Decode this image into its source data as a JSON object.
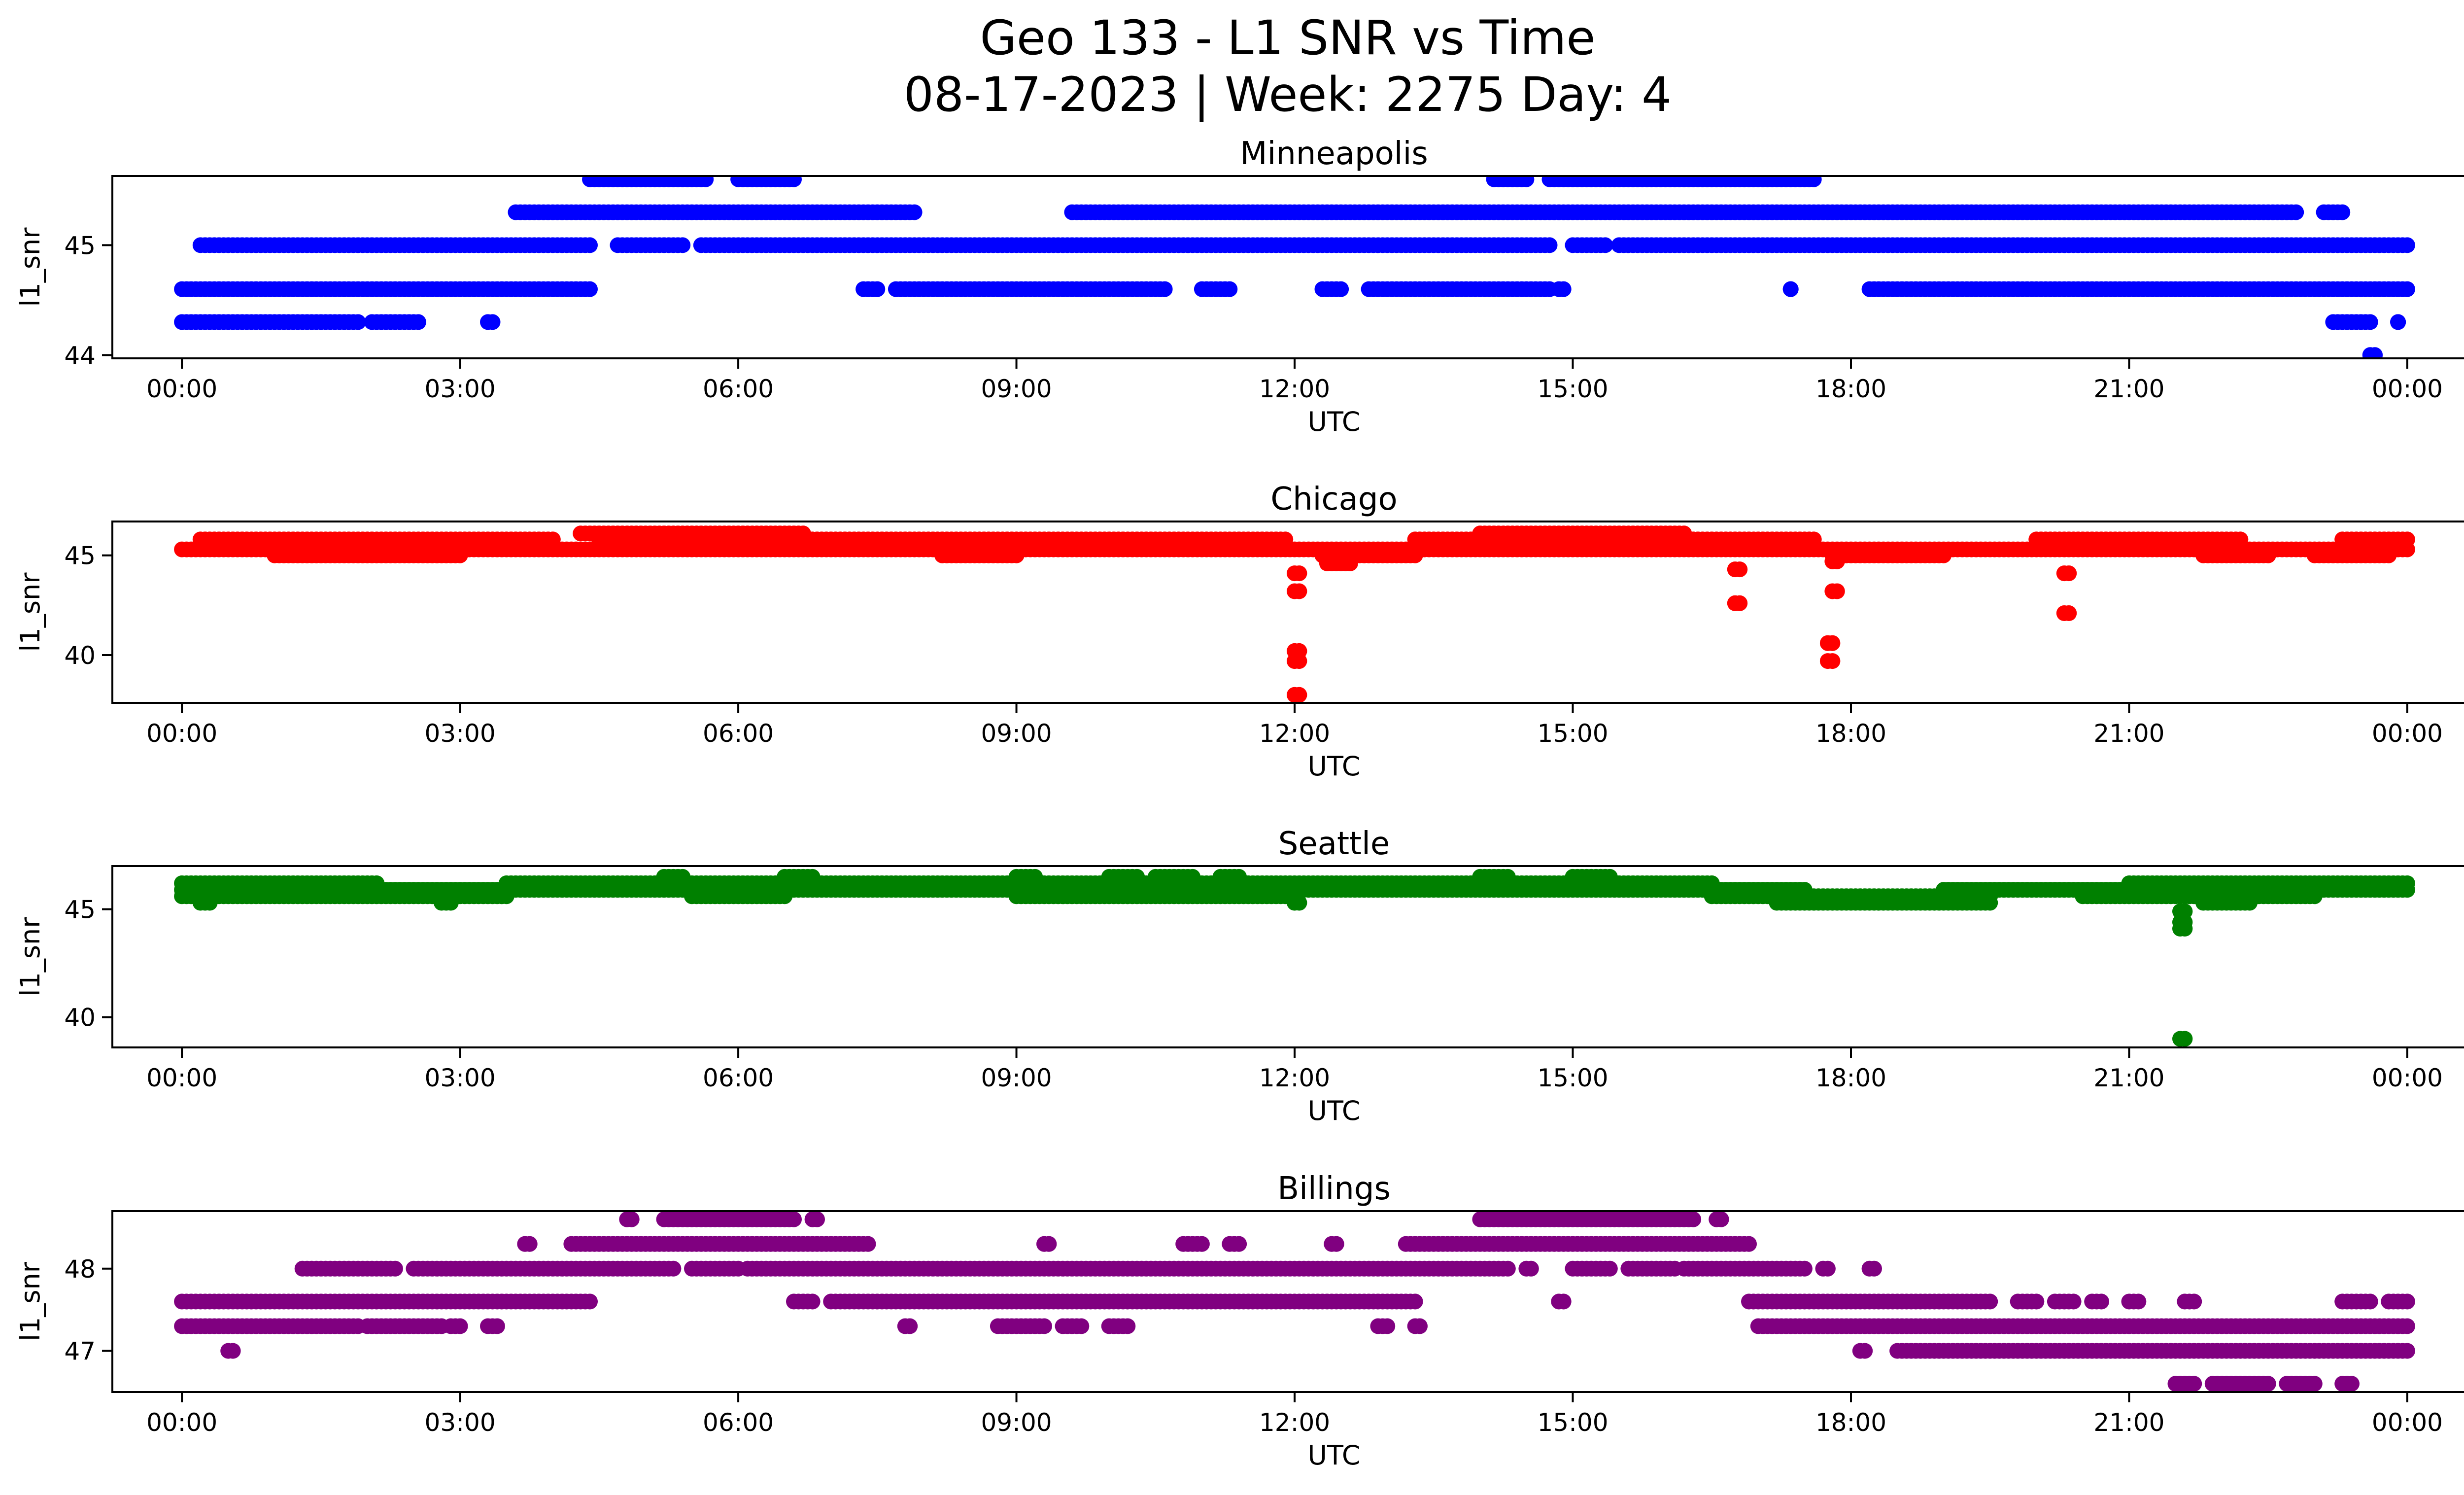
{
  "figure": {
    "title_line1": "Geo 133 - L1 SNR vs Time",
    "title_line2": "08-17-2023 | Week: 2275 Day: 4"
  },
  "chart_data": [
    {
      "type": "scatter",
      "title": "Minneapolis",
      "xlabel": "UTC",
      "ylabel": "l1_snr",
      "color": "#0000ff",
      "xlim_hours": [
        -0.75,
        25.6
      ],
      "ylim": [
        43.97,
        45.63
      ],
      "xticks": [
        "00:00",
        "03:00",
        "06:00",
        "09:00",
        "12:00",
        "15:00",
        "18:00",
        "21:00",
        "00:00"
      ],
      "yticks": [
        44,
        45
      ],
      "grid": false,
      "segments": [
        {
          "y": 45.6,
          "ranges": [
            [
              4.4,
              5.65
            ],
            [
              6.0,
              6.6
            ],
            [
              14.15,
              14.5
            ],
            [
              14.75,
              17.6
            ]
          ]
        },
        {
          "y": 45.3,
          "ranges": [
            [
              3.6,
              7.9
            ],
            [
              9.6,
              22.8
            ],
            [
              23.1,
              23.3
            ]
          ]
        },
        {
          "y": 45.0,
          "ranges": [
            [
              0.2,
              4.4
            ],
            [
              4.7,
              5.4
            ],
            [
              5.6,
              14.75
            ],
            [
              15.0,
              15.35
            ],
            [
              15.5,
              24.0
            ]
          ]
        },
        {
          "y": 44.6,
          "ranges": [
            [
              0.0,
              4.4
            ],
            [
              7.35,
              7.5
            ],
            [
              7.7,
              10.6
            ],
            [
              11.0,
              11.3
            ],
            [
              12.3,
              12.5
            ],
            [
              12.8,
              14.75
            ],
            [
              14.85,
              14.9
            ],
            [
              17.35,
              17.35
            ],
            [
              18.2,
              24.0
            ]
          ]
        },
        {
          "y": 44.3,
          "ranges": [
            [
              0.0,
              1.9
            ],
            [
              2.05,
              2.55
            ],
            [
              3.3,
              3.35
            ],
            [
              23.2,
              23.6
            ],
            [
              23.9,
              23.9
            ]
          ]
        },
        {
          "y": 44.0,
          "ranges": [
            [
              23.6,
              23.65
            ]
          ]
        }
      ]
    },
    {
      "type": "scatter",
      "title": "Chicago",
      "xlabel": "UTC",
      "ylabel": "l1_snr",
      "color": "#ff0000",
      "xlim_hours": [
        -0.75,
        25.6
      ],
      "ylim": [
        37.6,
        46.7
      ],
      "xticks": [
        "00:00",
        "03:00",
        "06:00",
        "09:00",
        "12:00",
        "15:00",
        "18:00",
        "21:00",
        "00:00"
      ],
      "yticks": [
        40,
        45
      ],
      "grid": false,
      "segments": [
        {
          "y": 45.3,
          "ranges": [
            [
              0.0,
              24.0
            ]
          ]
        },
        {
          "y": 45.8,
          "ranges": [
            [
              0.2,
              4.0
            ],
            [
              4.5,
              11.9
            ],
            [
              13.3,
              17.6
            ],
            [
              20.0,
              22.2
            ],
            [
              23.3,
              24.0
            ]
          ]
        },
        {
          "y": 46.1,
          "ranges": [
            [
              4.3,
              6.7
            ],
            [
              14.0,
              16.2
            ]
          ]
        },
        {
          "y": 45.0,
          "ranges": [
            [
              1.0,
              3.0
            ],
            [
              8.2,
              9.0
            ],
            [
              12.3,
              13.3
            ],
            [
              17.8,
              19.0
            ],
            [
              21.8,
              22.5
            ],
            [
              23.0,
              23.8
            ]
          ]
        },
        {
          "y": 44.6,
          "ranges": [
            [
              12.35,
              12.6
            ]
          ]
        },
        {
          "y": 44.1,
          "ranges": [
            [
              12.0,
              12.05
            ],
            [
              20.3,
              20.35
            ]
          ]
        },
        {
          "y": 44.3,
          "ranges": [
            [
              16.75,
              16.8
            ]
          ]
        },
        {
          "y": 44.7,
          "ranges": [
            [
              17.8,
              17.85
            ]
          ]
        },
        {
          "y": 43.2,
          "ranges": [
            [
              12.0,
              12.05
            ],
            [
              17.8,
              17.85
            ]
          ]
        },
        {
          "y": 42.6,
          "ranges": [
            [
              16.75,
              16.8
            ]
          ]
        },
        {
          "y": 42.1,
          "ranges": [
            [
              20.3,
              20.35
            ]
          ]
        },
        {
          "y": 40.6,
          "ranges": [
            [
              17.75,
              17.8
            ]
          ]
        },
        {
          "y": 39.7,
          "ranges": [
            [
              12.0,
              12.05
            ],
            [
              17.75,
              17.8
            ]
          ]
        },
        {
          "y": 40.2,
          "ranges": [
            [
              12.0,
              12.05
            ]
          ]
        },
        {
          "y": 38.0,
          "ranges": [
            [
              12.0,
              12.05
            ]
          ]
        }
      ]
    },
    {
      "type": "scatter",
      "title": "Seattle",
      "xlabel": "UTC",
      "ylabel": "l1_snr",
      "color": "#008000",
      "xlim_hours": [
        -0.75,
        25.6
      ],
      "ylim": [
        38.6,
        47.0
      ],
      "xticks": [
        "00:00",
        "03:00",
        "06:00",
        "09:00",
        "12:00",
        "15:00",
        "18:00",
        "21:00",
        "00:00"
      ],
      "yticks": [
        40,
        45
      ],
      "grid": false,
      "segments": [
        {
          "y": 46.2,
          "ranges": [
            [
              0.0,
              2.1
            ],
            [
              3.5,
              16.5
            ],
            [
              21.0,
              24.0
            ]
          ]
        },
        {
          "y": 45.9,
          "ranges": [
            [
              0.0,
              17.5
            ],
            [
              19.0,
              24.0
            ]
          ]
        },
        {
          "y": 45.6,
          "ranges": [
            [
              0.0,
              3.5
            ],
            [
              5.5,
              6.5
            ],
            [
              9.0,
              12.0
            ],
            [
              16.5,
              19.5
            ],
            [
              20.5,
              23.0
            ]
          ]
        },
        {
          "y": 46.5,
          "ranges": [
            [
              5.2,
              5.4
            ],
            [
              6.5,
              6.8
            ],
            [
              9.0,
              9.2
            ],
            [
              10.0,
              10.3
            ],
            [
              10.5,
              10.9
            ],
            [
              11.2,
              11.4
            ],
            [
              14.0,
              14.3
            ],
            [
              15.0,
              15.4
            ]
          ]
        },
        {
          "y": 45.3,
          "ranges": [
            [
              0.2,
              0.3
            ],
            [
              2.8,
              2.9
            ],
            [
              12.0,
              12.05
            ],
            [
              17.2,
              19.5
            ],
            [
              21.8,
              22.3
            ]
          ]
        },
        {
          "y": 44.9,
          "ranges": [
            [
              21.55,
              21.6
            ]
          ]
        },
        {
          "y": 44.4,
          "ranges": [
            [
              21.55,
              21.6
            ]
          ]
        },
        {
          "y": 44.1,
          "ranges": [
            [
              21.55,
              21.6
            ]
          ]
        },
        {
          "y": 39.0,
          "ranges": [
            [
              21.55,
              21.6
            ]
          ]
        }
      ]
    },
    {
      "type": "scatter",
      "title": "Billings",
      "xlabel": "UTC",
      "ylabel": "l1_snr",
      "color": "#800080",
      "xlim_hours": [
        -0.75,
        25.6
      ],
      "ylim": [
        46.5,
        48.7
      ],
      "xticks": [
        "00:00",
        "03:00",
        "06:00",
        "09:00",
        "12:00",
        "15:00",
        "18:00",
        "21:00",
        "00:00"
      ],
      "yticks": [
        47,
        48
      ],
      "grid": false,
      "segments": [
        {
          "y": 48.6,
          "ranges": [
            [
              4.8,
              4.85
            ],
            [
              5.2,
              6.6
            ],
            [
              6.8,
              6.85
            ],
            [
              14.0,
              16.3
            ],
            [
              16.55,
              16.6
            ]
          ]
        },
        {
          "y": 48.3,
          "ranges": [
            [
              3.7,
              3.75
            ],
            [
              4.2,
              7.4
            ],
            [
              9.3,
              9.35
            ],
            [
              10.8,
              11.0
            ],
            [
              11.3,
              11.4
            ],
            [
              12.4,
              12.45
            ],
            [
              13.2,
              16.9
            ]
          ]
        },
        {
          "y": 48.0,
          "ranges": [
            [
              1.3,
              2.3
            ],
            [
              2.5,
              5.3
            ],
            [
              5.5,
              6.0
            ],
            [
              6.1,
              14.3
            ],
            [
              14.5,
              14.55
            ],
            [
              15.0,
              15.4
            ],
            [
              15.6,
              16.1
            ],
            [
              16.2,
              17.5
            ],
            [
              17.7,
              17.75
            ],
            [
              18.2,
              18.25
            ]
          ]
        },
        {
          "y": 47.6,
          "ranges": [
            [
              0.0,
              4.4
            ],
            [
              6.6,
              6.8
            ],
            [
              7.0,
              13.3
            ],
            [
              14.85,
              14.9
            ],
            [
              16.9,
              19.5
            ],
            [
              19.8,
              20.0
            ],
            [
              20.2,
              20.4
            ],
            [
              20.6,
              20.7
            ],
            [
              21.0,
              21.1
            ],
            [
              21.6,
              21.7
            ],
            [
              23.3,
              23.6
            ],
            [
              23.8,
              24.0
            ]
          ]
        },
        {
          "y": 47.3,
          "ranges": [
            [
              0.0,
              1.9
            ],
            [
              2.0,
              2.8
            ],
            [
              2.9,
              3.0
            ],
            [
              3.3,
              3.4
            ],
            [
              7.8,
              7.85
            ],
            [
              8.8,
              9.3
            ],
            [
              9.5,
              9.7
            ],
            [
              10.0,
              10.2
            ],
            [
              12.9,
              13.0
            ],
            [
              13.3,
              13.35
            ],
            [
              17.0,
              24.0
            ]
          ]
        },
        {
          "y": 47.0,
          "ranges": [
            [
              0.5,
              0.55
            ],
            [
              18.1,
              18.15
            ],
            [
              18.5,
              24.0
            ]
          ]
        },
        {
          "y": 46.6,
          "ranges": [
            [
              21.5,
              21.7
            ],
            [
              21.9,
              22.5
            ],
            [
              22.7,
              23.0
            ],
            [
              23.3,
              23.4
            ]
          ]
        }
      ]
    }
  ]
}
